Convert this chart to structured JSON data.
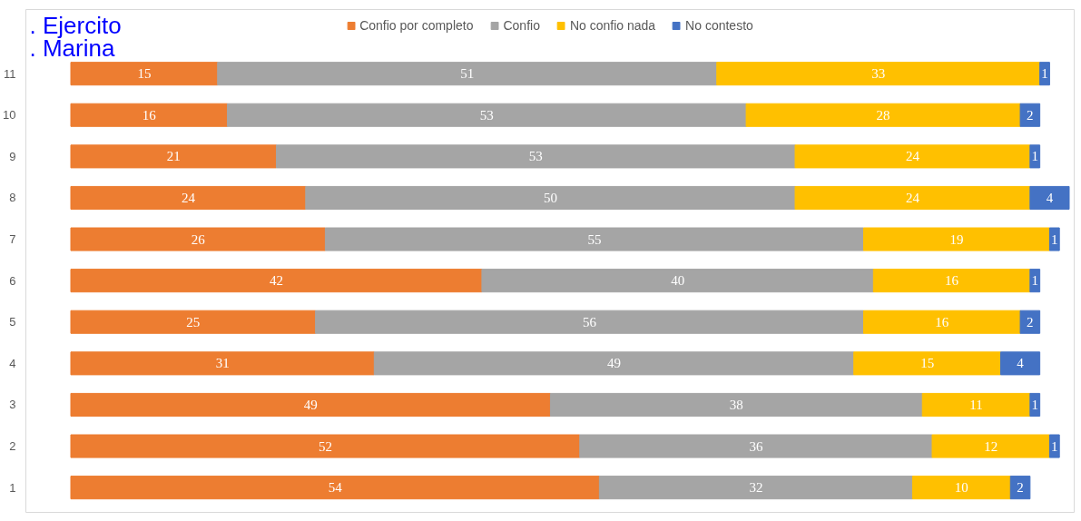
{
  "chart_data": {
    "type": "bar",
    "orientation": "horizontal",
    "stacked": true,
    "data_labels": true,
    "legend": "top",
    "annotations": [
      ". Ejercito",
      ". Marina"
    ],
    "categories": [
      "11",
      "10",
      "9",
      "8",
      "7",
      "6",
      "5",
      "4",
      "3",
      "2",
      "1"
    ],
    "series": [
      {
        "name": "Confio por completo",
        "color": "#ed7d31",
        "values": [
          15,
          16,
          21,
          24,
          26,
          42,
          25,
          31,
          49,
          52,
          54
        ]
      },
      {
        "name": "Confio",
        "color": "#a5a5a5",
        "values": [
          51,
          53,
          53,
          50,
          55,
          40,
          56,
          49,
          38,
          36,
          32
        ]
      },
      {
        "name": "No confio nada",
        "color": "#ffc000",
        "values": [
          33,
          28,
          24,
          24,
          19,
          16,
          16,
          15,
          11,
          12,
          10
        ]
      },
      {
        "name": "No contesto",
        "color": "#4472c4",
        "values": [
          1,
          2,
          1,
          4,
          1,
          1,
          2,
          4,
          1,
          1,
          2
        ]
      }
    ]
  }
}
